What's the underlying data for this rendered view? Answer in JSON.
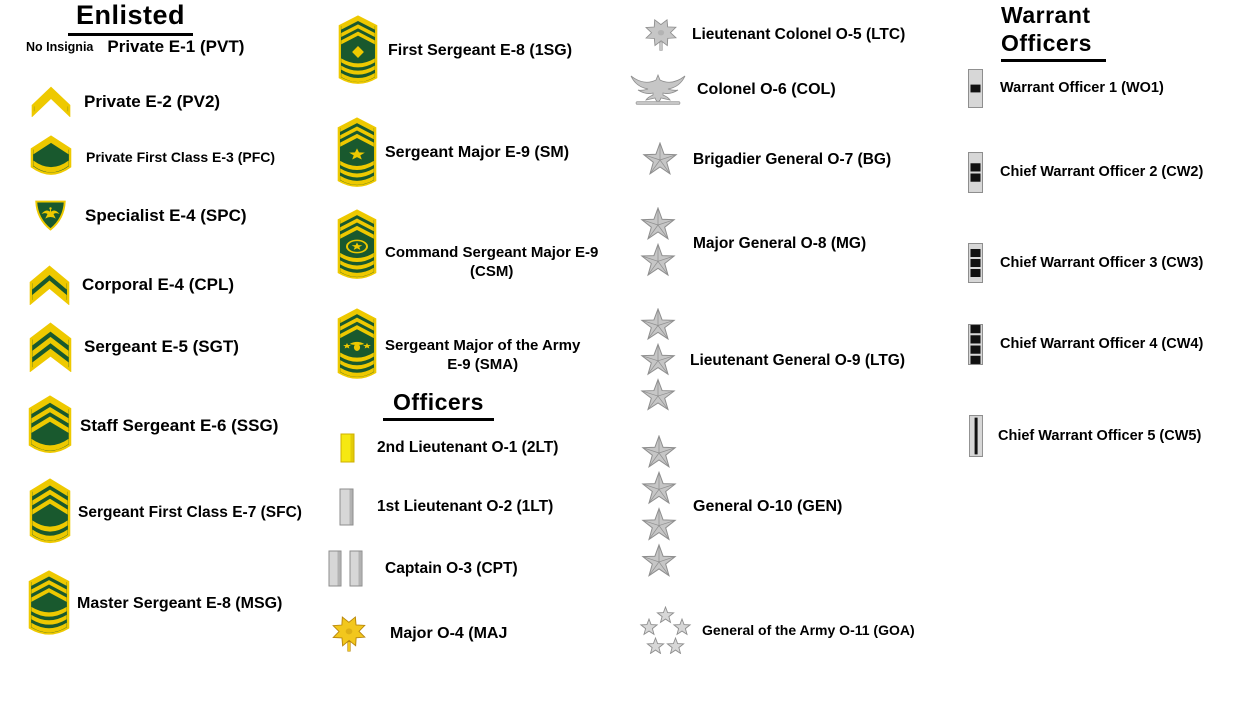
{
  "colors": {
    "insignia_green": "#19592e",
    "insignia_gold": "#eec900",
    "gold_bar": "#f6e811",
    "gold_bar_edge": "#cfb000",
    "gold_leaf": "#f2c71d",
    "gold_leaf_edge": "#b8860b",
    "silver_light": "#d7d7d7",
    "silver": "#c6c6c6",
    "silver_dark": "#8e8e8e",
    "black": "#000000"
  },
  "sections": {
    "enlisted": {
      "title": "Enlisted",
      "no_insignia_note": "No Insignia",
      "items": [
        {
          "id": "pvt",
          "label": "Private E-1  (PVT)",
          "insignia": "none"
        },
        {
          "id": "pv2",
          "label": "Private E-2 (PV2)",
          "insignia": "chevron-1"
        },
        {
          "id": "pfc",
          "label": "Private First Class E-3 (PFC)",
          "insignia": "chevron-1-rocker-1"
        },
        {
          "id": "spc",
          "label": "Specialist E-4 (SPC)",
          "insignia": "specialist-eagle-shield"
        },
        {
          "id": "cpl",
          "label": "Corporal E-4 (CPL)",
          "insignia": "chevron-2"
        },
        {
          "id": "sgt",
          "label": "Sergeant E-5 (SGT)",
          "insignia": "chevron-3"
        },
        {
          "id": "ssg",
          "label": "Staff Sergeant E-6 (SSG)",
          "insignia": "chevron-3-rocker-1"
        },
        {
          "id": "sfc",
          "label": "Sergeant First Class E-7  (SFC)",
          "insignia": "chevron-3-rocker-2"
        },
        {
          "id": "msg",
          "label": "Master Sergeant E-8 (MSG)",
          "insignia": "chevron-3-rocker-3"
        }
      ]
    },
    "senior_enlisted": {
      "items": [
        {
          "id": "1sg",
          "label": "First Sergeant E-8  (1SG)",
          "insignia": "chevron-3-rocker-3-lozenge"
        },
        {
          "id": "sm",
          "label": "Sergeant Major E-9  (SM)",
          "insignia": "chevron-3-rocker-3-star"
        },
        {
          "id": "csm",
          "label": "Command Sergeant Major E-9",
          "label2": "(CSM)",
          "insignia": "chevron-3-rocker-3-wreath-star"
        },
        {
          "id": "sma",
          "label": "Sergeant Major of the Army",
          "label2": "E-9 (SMA)",
          "insignia": "chevron-3-rocker-3-eagle-stars"
        }
      ]
    },
    "officers": {
      "title": "Officers",
      "items": [
        {
          "id": "2lt",
          "label": "2nd Lieutenant O-1  (2LT)",
          "insignia": "gold-bar"
        },
        {
          "id": "1lt",
          "label": "1st Lieutenant O-2  (1LT)",
          "insignia": "silver-bar"
        },
        {
          "id": "cpt",
          "label": "Captain O-3  (CPT)",
          "insignia": "double-silver-bar"
        },
        {
          "id": "maj",
          "label": "Major O-4  (MAJ",
          "insignia": "gold-oak-leaf"
        },
        {
          "id": "ltc",
          "label": "Lieutenant Colonel O-5 (LTC)",
          "insignia": "silver-oak-leaf"
        },
        {
          "id": "col",
          "label": "Colonel O-6  (COL)",
          "insignia": "silver-eagle"
        },
        {
          "id": "bg",
          "label": "Brigadier General O-7  (BG)",
          "insignia": "star-1"
        },
        {
          "id": "mg",
          "label": "Major General O-8  (MG)",
          "insignia": "star-2"
        },
        {
          "id": "ltg",
          "label": "Lieutenant General O-9  (LTG)",
          "insignia": "star-3"
        },
        {
          "id": "gen",
          "label": "General O-10  (GEN)",
          "insignia": "star-4"
        },
        {
          "id": "goa",
          "label": "General of the Army O-11 (GOA)",
          "insignia": "star-circle-5"
        }
      ]
    },
    "warrant": {
      "title_line1": "Warrant",
      "title_line2": "Officers",
      "items": [
        {
          "id": "wo1",
          "label": "Warrant Officer 1  (WO1)",
          "insignia": "wo-bar-1"
        },
        {
          "id": "cw2",
          "label": "Chief Warrant Officer 2  (CW2)",
          "insignia": "wo-bar-2"
        },
        {
          "id": "cw3",
          "label": "Chief Warrant Officer 3  (CW3)",
          "insignia": "wo-bar-3"
        },
        {
          "id": "cw4",
          "label": "Chief Warrant Officer 4  (CW4)",
          "insignia": "wo-bar-4"
        },
        {
          "id": "cw5",
          "label": "Chief Warrant Officer 5  (CW5)",
          "insignia": "wo-bar-5"
        }
      ]
    }
  }
}
